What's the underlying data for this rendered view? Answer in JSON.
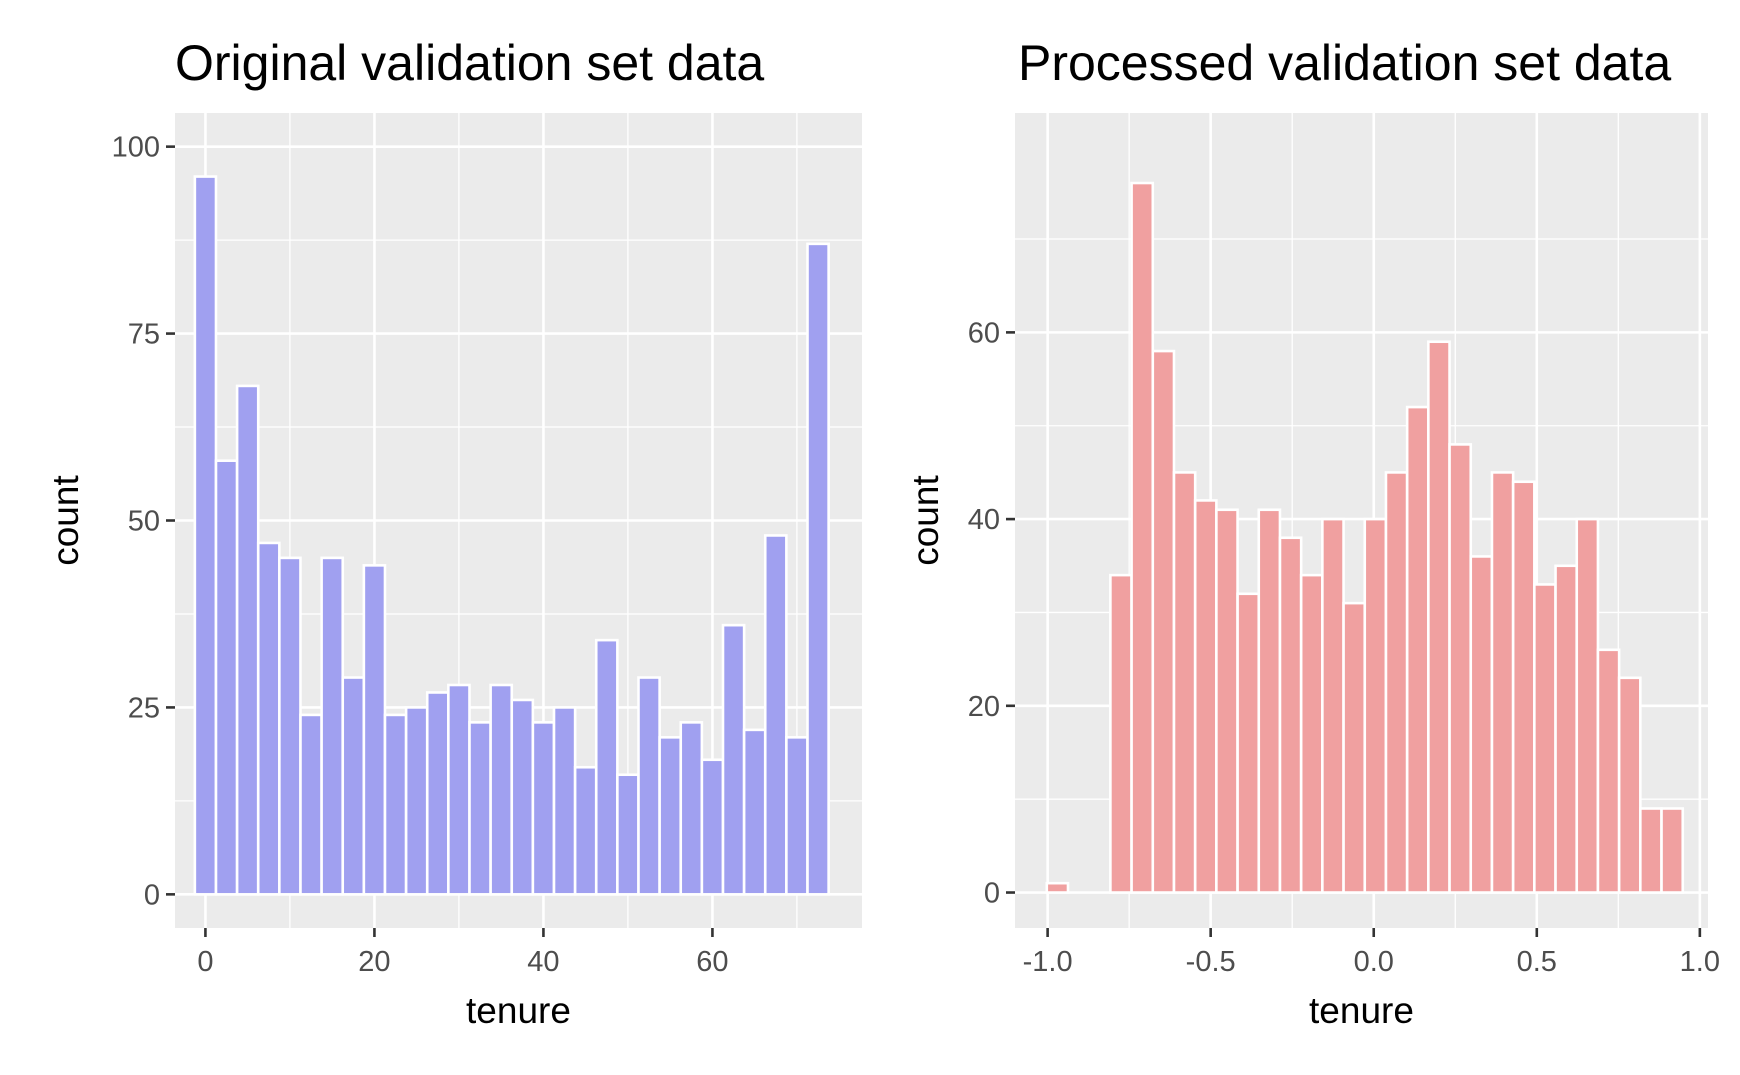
{
  "chart_data": [
    {
      "type": "bar",
      "title": "Original validation set data",
      "xlabel": "tenure",
      "ylabel": "count",
      "bar_color": "#a0a0f0",
      "bar_outline": "#ffffff",
      "panel_background": "#ebebeb",
      "grid": true,
      "bin_width": 2.5,
      "xlim": [
        -3.6,
        77.7
      ],
      "ylim": [
        -4.5,
        104.5
      ],
      "xticks": [
        0,
        20,
        40,
        60
      ],
      "xtick_labels": [
        "0",
        "20",
        "40",
        "60"
      ],
      "yticks": [
        0,
        25,
        50,
        75,
        100
      ],
      "ytick_labels": [
        "0",
        "25",
        "50",
        "75",
        "100"
      ],
      "x": [
        0,
        2.5,
        5,
        7.5,
        10,
        12.5,
        15,
        17.5,
        20,
        22.5,
        25,
        27.5,
        30,
        32.5,
        35,
        37.5,
        40,
        42.5,
        45,
        47.5,
        50,
        52.5,
        55,
        57.5,
        60,
        62.5,
        65,
        67.5,
        70,
        72.5
      ],
      "values": [
        96,
        58,
        68,
        47,
        45,
        24,
        45,
        29,
        44,
        24,
        25,
        27,
        28,
        23,
        28,
        26,
        23,
        25,
        17,
        34,
        16,
        29,
        21,
        23,
        18,
        36,
        22,
        48,
        21,
        87
      ]
    },
    {
      "type": "bar",
      "title": "Processed validation set data",
      "xlabel": "tenure",
      "ylabel": "count",
      "bar_color": "#f0a0a0",
      "bar_outline": "#ffffff",
      "panel_background": "#ebebeb",
      "grid": true,
      "bin_width": 0.065,
      "xlim": [
        -1.1,
        1.025
      ],
      "ylim": [
        -3.8,
        83.5
      ],
      "xticks": [
        -1.0,
        -0.5,
        0.0,
        0.5,
        1.0
      ],
      "xtick_labels": [
        "-1.0",
        "-0.5",
        "0.0",
        "0.5",
        "1.0"
      ],
      "yticks": [
        0,
        20,
        40,
        60
      ],
      "ytick_labels": [
        "0",
        "20",
        "40",
        "60"
      ],
      "x": [
        -0.97,
        -0.905,
        -0.84,
        -0.775,
        -0.71,
        -0.645,
        -0.58,
        -0.515,
        -0.45,
        -0.385,
        -0.32,
        -0.255,
        -0.19,
        -0.125,
        -0.06,
        0.005,
        0.07,
        0.135,
        0.2,
        0.265,
        0.33,
        0.395,
        0.46,
        0.525,
        0.59,
        0.655,
        0.72,
        0.785,
        0.85,
        0.915
      ],
      "values": [
        1,
        0,
        0,
        34,
        76,
        58,
        45,
        42,
        41,
        32,
        41,
        38,
        34,
        40,
        31,
        40,
        45,
        52,
        59,
        48,
        36,
        45,
        44,
        33,
        35,
        40,
        26,
        23,
        9,
        9
      ]
    }
  ]
}
